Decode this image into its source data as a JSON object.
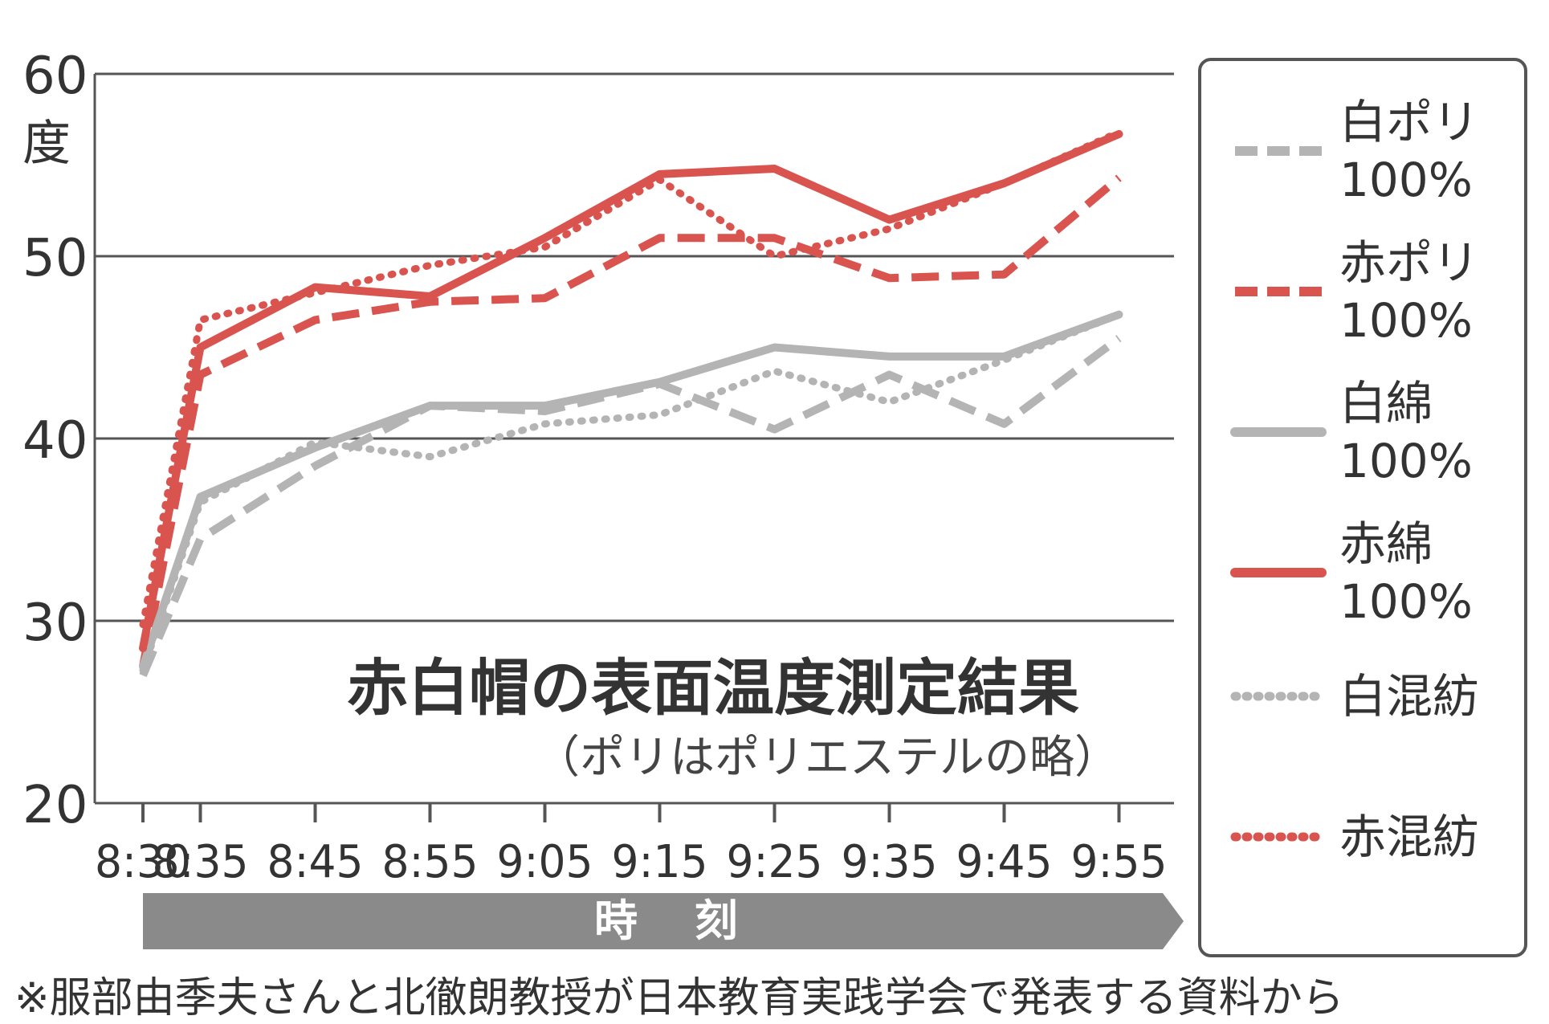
{
  "chart_data": {
    "type": "line",
    "title": "赤白帽の表面温度測定結果",
    "subtitle": "（ポリはポリエステルの略）",
    "ylabel": "度",
    "xlabel": "時 刻",
    "ylim": [
      20,
      60
    ],
    "yticks": [
      "20",
      "30",
      "40",
      "50",
      "60"
    ],
    "categories": [
      "8:30",
      "8:35",
      "8:45",
      "8:55",
      "9:05",
      "9:15",
      "9:25",
      "9:35",
      "9:45",
      "9:55"
    ],
    "x_minutes": [
      0,
      5,
      15,
      25,
      35,
      45,
      55,
      65,
      75,
      85
    ],
    "grid": true,
    "legend_position": "right",
    "series": [
      {
        "name": "白ポリ\n100%",
        "color": "#b4b4b4",
        "style": "dashed",
        "values": [
          27,
          34.5,
          38.5,
          41.8,
          41.5,
          43,
          40.5,
          43.5,
          40.8,
          45.5
        ]
      },
      {
        "name": "赤ポリ\n100%",
        "color": "#d9534f",
        "style": "dashed",
        "values": [
          27.5,
          43.5,
          46.5,
          47.5,
          47.7,
          51,
          51,
          48.8,
          49,
          54.3
        ]
      },
      {
        "name": "白綿\n100%",
        "color": "#b4b4b4",
        "style": "solid",
        "values": [
          27.5,
          36.8,
          39.5,
          41.8,
          41.8,
          43.1,
          45,
          44.5,
          44.5,
          46.8
        ]
      },
      {
        "name": "赤綿\n100%",
        "color": "#d9534f",
        "style": "solid",
        "values": [
          28.5,
          45,
          48.3,
          47.8,
          51,
          54.5,
          54.8,
          52,
          54,
          56.7
        ]
      },
      {
        "name": "白混紡",
        "color": "#b4b4b4",
        "style": "dotted",
        "values": [
          27.3,
          36.5,
          39.8,
          39,
          40.8,
          41.3,
          43.7,
          42,
          44.3,
          46.8
        ]
      },
      {
        "name": "赤混紡",
        "color": "#d9534f",
        "style": "dotted",
        "values": [
          29.8,
          46.5,
          48,
          49.5,
          50.5,
          54.2,
          50,
          51.5,
          54,
          56.8
        ]
      }
    ]
  },
  "footnote": "※服部由季夫さんと北徹朗教授が日本教育実践学会で発表する資料から"
}
